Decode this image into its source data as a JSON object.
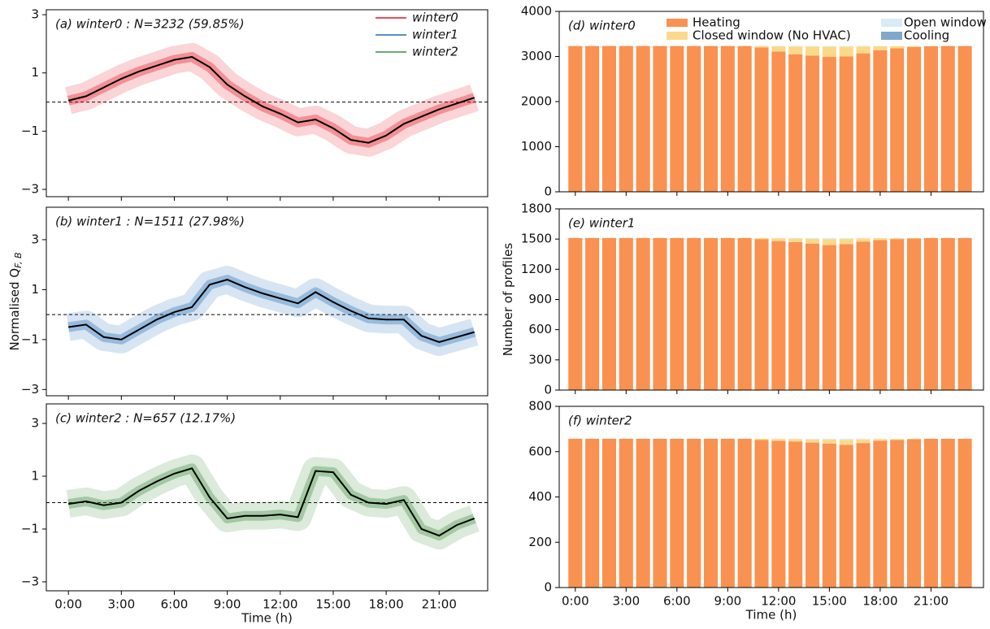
{
  "chart_data": [
    {
      "type": "line",
      "title": "(a) winter0 : N=3232 (59.85%)",
      "x": [
        0,
        1,
        2,
        3,
        4,
        5,
        6,
        7,
        8,
        9,
        10,
        11,
        12,
        13,
        14,
        15,
        16,
        17,
        18,
        19,
        20,
        21,
        22,
        23
      ],
      "series": [
        {
          "name": "winter0",
          "color": "#e3121b",
          "values": [
            0.05,
            0.2,
            0.5,
            0.8,
            1.05,
            1.25,
            1.45,
            1.55,
            1.2,
            0.6,
            0.2,
            -0.15,
            -0.4,
            -0.7,
            -0.6,
            -0.9,
            -1.3,
            -1.4,
            -1.15,
            -0.75,
            -0.5,
            -0.25,
            -0.05,
            0.15
          ]
        }
      ],
      "line_color": "#000000",
      "hline": 0,
      "xlim": [
        -1.25,
        23.75
      ],
      "ylim": [
        -3.25,
        3.17
      ],
      "yticks": [
        {
          "value": -3,
          "label": "−3"
        },
        {
          "value": -1,
          "label": "−1"
        },
        1,
        3
      ],
      "legend": "upper right"
    },
    {
      "type": "line",
      "title": "(b) winter1 : N=1511 (27.98%)",
      "y_label": "Normalised Q",
      "y_label_sub": "F, B",
      "x": [
        0,
        1,
        2,
        3,
        4,
        5,
        6,
        7,
        8,
        9,
        10,
        11,
        12,
        13,
        14,
        15,
        16,
        17,
        18,
        19,
        20,
        21,
        22,
        23
      ],
      "series": [
        {
          "name": "winter1",
          "color": "#1f6db5",
          "values": [
            -0.5,
            -0.4,
            -0.9,
            -1.0,
            -0.6,
            -0.2,
            0.1,
            0.3,
            1.2,
            1.4,
            1.1,
            0.85,
            0.65,
            0.45,
            0.9,
            0.5,
            0.15,
            -0.15,
            -0.2,
            -0.2,
            -0.85,
            -1.1,
            -0.9,
            -0.7
          ]
        }
      ],
      "line_color": "#000000",
      "hline": 0,
      "xlim": [
        -1.25,
        23.75
      ],
      "ylim": [
        -3.25,
        4.3
      ],
      "yticks": [
        {
          "value": -3,
          "label": "−3"
        },
        {
          "value": -1,
          "label": "−1"
        },
        1,
        3
      ]
    },
    {
      "type": "line",
      "title": "(c) winter2 : N=657 (12.17%)",
      "x_label": "Time (h)",
      "x": [
        0,
        1,
        2,
        3,
        4,
        5,
        6,
        7,
        8,
        9,
        10,
        11,
        12,
        13,
        14,
        15,
        16,
        17,
        18,
        19,
        20,
        21,
        22,
        23
      ],
      "series": [
        {
          "name": "winter2",
          "color": "#3a8c3a",
          "values": [
            -0.05,
            0.05,
            -0.1,
            0,
            0.45,
            0.8,
            1.1,
            1.3,
            0.2,
            -0.6,
            -0.5,
            -0.5,
            -0.45,
            -0.55,
            1.2,
            1.15,
            0.3,
            0,
            -0.05,
            0.1,
            -1.0,
            -1.25,
            -0.85,
            -0.6
          ]
        }
      ],
      "line_color": "#000000",
      "hline": 0,
      "xlim": [
        -1.25,
        23.75
      ],
      "ylim": [
        -3.34,
        3.74
      ],
      "yticks": [
        {
          "value": -3,
          "label": "−3"
        },
        {
          "value": -1,
          "label": "−1"
        },
        1,
        3
      ],
      "xticks": [
        {
          "value": 0,
          "label": "0:00"
        },
        {
          "value": 3,
          "label": "3:00"
        },
        {
          "value": 6,
          "label": "6:00"
        },
        {
          "value": 9,
          "label": "9:00"
        },
        {
          "value": 12,
          "label": "12:00"
        },
        {
          "value": 15,
          "label": "15:00"
        },
        {
          "value": 18,
          "label": "18:00"
        },
        {
          "value": 21,
          "label": "21:00"
        }
      ]
    },
    {
      "type": "stacked_bar",
      "title": "(d) winter0",
      "x": [
        0,
        1,
        2,
        3,
        4,
        5,
        6,
        7,
        8,
        9,
        10,
        11,
        12,
        13,
        14,
        15,
        16,
        17,
        18,
        19,
        20,
        21,
        22,
        23
      ],
      "series": [
        {
          "name": "Heating",
          "color": "#f99150",
          "values": [
            3232,
            3232,
            3232,
            3232,
            3232,
            3232,
            3232,
            3232,
            3232,
            3232,
            3232,
            3200,
            3110,
            3050,
            3020,
            2990,
            3000,
            3070,
            3140,
            3180,
            3210,
            3225,
            3232,
            3232
          ]
        },
        {
          "name": "Closed window (No HVAC)",
          "color": "#fcd98a",
          "values": [
            0,
            0,
            0,
            0,
            0,
            0,
            0,
            0,
            0,
            0,
            0,
            32,
            117,
            172,
            200,
            228,
            218,
            152,
            87,
            50,
            22,
            7,
            0,
            0
          ]
        },
        {
          "name": "Open window",
          "color": "#d8ebf6",
          "values": [
            0,
            0,
            0,
            0,
            0,
            0,
            0,
            0,
            0,
            0,
            0,
            0,
            5,
            10,
            12,
            14,
            14,
            10,
            5,
            2,
            0,
            0,
            0,
            0
          ]
        },
        {
          "name": "Cooling",
          "color": "#7fa8cc",
          "values": [
            0,
            0,
            0,
            0,
            0,
            0,
            0,
            0,
            0,
            0,
            0,
            0,
            0,
            0,
            0,
            0,
            0,
            0,
            0,
            0,
            0,
            0,
            0,
            0
          ]
        }
      ],
      "xlim": [
        -0.95,
        24.1
      ],
      "ylim": [
        0,
        4000
      ],
      "yticks": [
        0,
        1000,
        2000,
        3000,
        4000
      ],
      "legend": "upper center"
    },
    {
      "type": "stacked_bar",
      "title": "(e) winter1",
      "y_label": "Number of profiles",
      "x": [
        0,
        1,
        2,
        3,
        4,
        5,
        6,
        7,
        8,
        9,
        10,
        11,
        12,
        13,
        14,
        15,
        16,
        17,
        18,
        19,
        20,
        21,
        22,
        23
      ],
      "series": [
        {
          "name": "Heating",
          "color": "#f99150",
          "values": [
            1511,
            1511,
            1511,
            1511,
            1511,
            1511,
            1511,
            1511,
            1511,
            1511,
            1511,
            1500,
            1480,
            1470,
            1455,
            1440,
            1450,
            1475,
            1490,
            1500,
            1505,
            1511,
            1511,
            1511
          ]
        },
        {
          "name": "Closed window (No HVAC)",
          "color": "#fcd98a",
          "values": [
            0,
            0,
            0,
            0,
            0,
            0,
            0,
            0,
            0,
            0,
            0,
            11,
            28,
            36,
            48,
            60,
            52,
            32,
            19,
            10,
            6,
            0,
            0,
            0
          ]
        },
        {
          "name": "Open window",
          "color": "#d8ebf6",
          "values": [
            0,
            0,
            0,
            0,
            0,
            0,
            0,
            0,
            0,
            0,
            0,
            0,
            3,
            5,
            8,
            11,
            9,
            4,
            2,
            1,
            0,
            0,
            0,
            0
          ]
        },
        {
          "name": "Cooling",
          "color": "#7fa8cc",
          "values": [
            0,
            0,
            0,
            0,
            0,
            0,
            0,
            0,
            0,
            0,
            0,
            0,
            0,
            0,
            0,
            0,
            0,
            0,
            0,
            0,
            0,
            0,
            0,
            0
          ]
        }
      ],
      "xlim": [
        -0.95,
        24.1
      ],
      "ylim": [
        0,
        1800
      ],
      "yticks": [
        0,
        300,
        600,
        900,
        1200,
        1500,
        1800
      ]
    },
    {
      "type": "stacked_bar",
      "title": "(f) winter2",
      "x_label": "Time (h)",
      "x": [
        0,
        1,
        2,
        3,
        4,
        5,
        6,
        7,
        8,
        9,
        10,
        11,
        12,
        13,
        14,
        15,
        16,
        17,
        18,
        19,
        20,
        21,
        22,
        23
      ],
      "series": [
        {
          "name": "Heating",
          "color": "#f99150",
          "values": [
            657,
            657,
            657,
            657,
            657,
            657,
            657,
            657,
            657,
            657,
            657,
            652,
            648,
            645,
            640,
            635,
            630,
            638,
            648,
            652,
            655,
            657,
            657,
            657
          ]
        },
        {
          "name": "Closed window (No HVAC)",
          "color": "#fcd98a",
          "values": [
            0,
            0,
            0,
            0,
            0,
            0,
            0,
            0,
            0,
            0,
            0,
            5,
            8,
            10,
            14,
            18,
            22,
            16,
            8,
            4,
            2,
            0,
            0,
            0
          ]
        },
        {
          "name": "Open window",
          "color": "#d8ebf6",
          "values": [
            0,
            0,
            0,
            0,
            0,
            0,
            0,
            0,
            0,
            0,
            0,
            0,
            1,
            2,
            3,
            4,
            5,
            3,
            1,
            1,
            0,
            0,
            0,
            0
          ]
        },
        {
          "name": "Cooling",
          "color": "#7fa8cc",
          "values": [
            0,
            0,
            0,
            0,
            0,
            0,
            0,
            0,
            0,
            0,
            0,
            0,
            0,
            0,
            0,
            0,
            0,
            0,
            0,
            0,
            0,
            0,
            0,
            0
          ]
        }
      ],
      "xlim": [
        -0.95,
        24.1
      ],
      "ylim": [
        0,
        800
      ],
      "yticks": [
        0,
        200,
        400,
        600,
        800
      ],
      "xticks": [
        {
          "value": 0,
          "label": "0:00"
        },
        {
          "value": 3,
          "label": "3:00"
        },
        {
          "value": 6,
          "label": "6:00"
        },
        {
          "value": 9,
          "label": "9:00"
        },
        {
          "value": 12,
          "label": "12:00"
        },
        {
          "value": 15,
          "label": "15:00"
        },
        {
          "value": 18,
          "label": "18:00"
        },
        {
          "value": 21,
          "label": "21:00"
        }
      ]
    }
  ]
}
